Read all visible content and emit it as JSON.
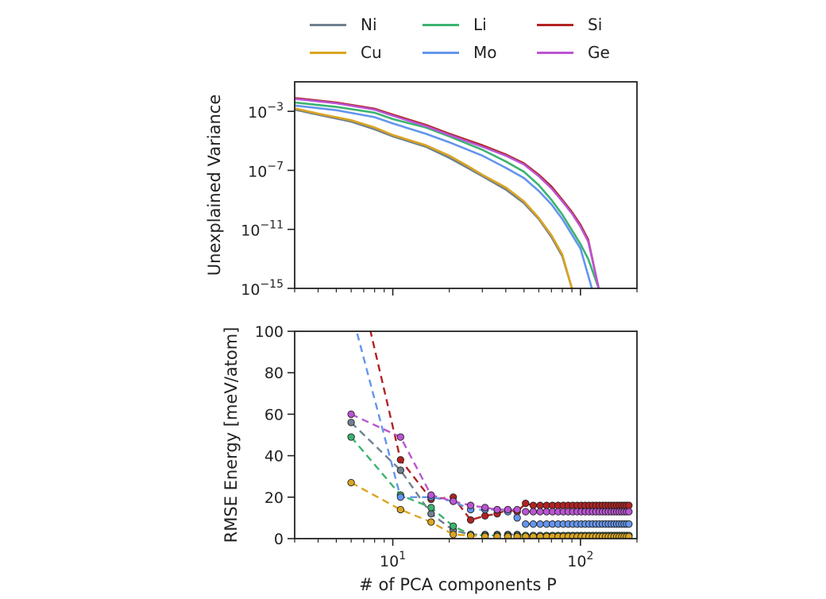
{
  "legend": [
    {
      "name": "Ni",
      "color": "#708090"
    },
    {
      "name": "Li",
      "color": "#3cb371"
    },
    {
      "name": "Si",
      "color": "#b22222"
    },
    {
      "name": "Cu",
      "color": "#daa520"
    },
    {
      "name": "Mo",
      "color": "#6495ed"
    },
    {
      "name": "Ge",
      "color": "#ba55d3"
    }
  ],
  "chart_data": [
    {
      "type": "line",
      "title": "",
      "xlabel": "",
      "ylabel": "Unexplained Variance",
      "xscale": "log",
      "yscale": "log",
      "xlim": [
        3,
        200
      ],
      "ylim": [
        1e-15,
        0.1
      ],
      "yticks": [
        {
          "value": 0.001,
          "base": "10",
          "exp": "−3"
        },
        {
          "value": 1e-07,
          "base": "10",
          "exp": "−7"
        },
        {
          "value": 1e-11,
          "base": "10",
          "exp": "−11"
        },
        {
          "value": 1e-15,
          "base": "10",
          "exp": "−15"
        }
      ],
      "xticks": [
        {
          "value": 10,
          "base": "10",
          "exp": "1"
        },
        {
          "value": 100,
          "base": "10",
          "exp": "2"
        }
      ],
      "series": [
        {
          "name": "Ni",
          "x": [
            3,
            4,
            6,
            8,
            10,
            15,
            20,
            25,
            30,
            40,
            50,
            60,
            70,
            80,
            90
          ],
          "y": [
            0.0013,
            0.0006,
            0.0002,
            6e-05,
            2e-05,
            4e-06,
            7e-07,
            1.5e-07,
            4e-08,
            5e-09,
            6e-10,
            5e-11,
            3e-12,
            1.5e-13,
            1e-15
          ]
        },
        {
          "name": "Li",
          "x": [
            3,
            5,
            8,
            10,
            15,
            20,
            30,
            40,
            50,
            60,
            70,
            80,
            100,
            110,
            125
          ],
          "y": [
            0.004,
            0.002,
            0.0008,
            0.0003,
            8e-05,
            2e-05,
            2.5e-06,
            4e-07,
            8e-08,
            1e-08,
            1e-09,
            1e-10,
            1e-12,
            1e-13,
            1e-15
          ]
        },
        {
          "name": "Si",
          "x": [
            3,
            5,
            8,
            10,
            15,
            20,
            30,
            40,
            50,
            60,
            70,
            80,
            90,
            100,
            110,
            125
          ],
          "y": [
            0.008,
            0.004,
            0.0015,
            0.0006,
            0.00012,
            3e-05,
            5e-06,
            1.2e-06,
            3e-07,
            5e-08,
            8e-09,
            1e-09,
            1.5e-10,
            2e-11,
            2e-12,
            1e-15
          ]
        },
        {
          "name": "Cu",
          "x": [
            3,
            4,
            6,
            8,
            10,
            15,
            20,
            25,
            30,
            40,
            50,
            60,
            70,
            80,
            90
          ],
          "y": [
            0.0016,
            0.0007,
            0.00025,
            8e-05,
            2.5e-05,
            5e-06,
            1e-06,
            2e-07,
            5e-08,
            7e-09,
            8e-10,
            6e-11,
            4e-12,
            2e-13,
            1e-15
          ]
        },
        {
          "name": "Mo",
          "x": [
            3,
            5,
            8,
            10,
            15,
            20,
            30,
            40,
            50,
            60,
            70,
            80,
            100,
            115
          ],
          "y": [
            0.0025,
            0.0012,
            0.0004,
            0.00015,
            3e-05,
            8e-06,
            1e-06,
            1.5e-07,
            3e-08,
            4e-09,
            5e-10,
            5e-11,
            5e-13,
            1e-15
          ]
        },
        {
          "name": "Ge",
          "x": [
            3,
            5,
            8,
            10,
            15,
            20,
            30,
            40,
            50,
            60,
            70,
            80,
            90,
            100,
            110,
            125
          ],
          "y": [
            0.007,
            0.0035,
            0.0013,
            0.0005,
            0.0001,
            2.5e-05,
            4e-06,
            1e-06,
            2.5e-07,
            4e-08,
            6e-09,
            8e-10,
            1.2e-10,
            1.5e-11,
            1.5e-12,
            1e-15
          ]
        }
      ]
    },
    {
      "type": "line",
      "title": "",
      "xlabel": "# of PCA components P",
      "ylabel": "RMSE Energy [meV/atom]",
      "xscale": "log",
      "yscale": "linear",
      "xlim": [
        3,
        200
      ],
      "ylim": [
        0,
        100
      ],
      "yticks": [
        {
          "value": 0,
          "label": "0"
        },
        {
          "value": 20,
          "label": "20"
        },
        {
          "value": 40,
          "label": "40"
        },
        {
          "value": 60,
          "label": "60"
        },
        {
          "value": 80,
          "label": "80"
        },
        {
          "value": 100,
          "label": "100"
        }
      ],
      "xticks": [
        {
          "value": 10,
          "base": "10",
          "exp": "1"
        },
        {
          "value": 100,
          "base": "10",
          "exp": "2"
        }
      ],
      "series": [
        {
          "name": "Ni",
          "x": [
            6,
            11,
            16,
            21,
            26,
            31,
            36,
            41,
            46,
            51,
            56,
            61,
            66,
            71,
            76,
            81,
            86,
            91,
            96,
            101,
            106,
            111,
            116,
            121,
            126,
            131,
            136,
            141,
            146,
            151,
            156,
            161,
            166,
            171,
            176,
            181
          ],
          "y": [
            56,
            33,
            12,
            4,
            2,
            2,
            2,
            2,
            2,
            1.5,
            1.5,
            1.5,
            1.5,
            1.5,
            1.5,
            1.5,
            1.5,
            1.5,
            1.5,
            1.5,
            1.5,
            1.5,
            1.5,
            1.5,
            1.5,
            1.5,
            1.5,
            1.5,
            1.5,
            1.5,
            1.5,
            1.5,
            1.5,
            1.5,
            1.5,
            1.5
          ]
        },
        {
          "name": "Li",
          "x": [
            6,
            11,
            16,
            21,
            26,
            31,
            36,
            41,
            46,
            51,
            56,
            61,
            66,
            71,
            76,
            81,
            86,
            91,
            96,
            101,
            106,
            111,
            116,
            121,
            126,
            131,
            136,
            141,
            146,
            151,
            156,
            161,
            166,
            171,
            176,
            181
          ],
          "y": [
            49,
            21,
            15,
            6,
            2,
            1.5,
            1.5,
            1.5,
            1.5,
            1.5,
            1.5,
            1.5,
            1.5,
            1.5,
            1.5,
            1.5,
            1.5,
            1.5,
            1.5,
            1.5,
            1.5,
            1.5,
            1.5,
            1.5,
            1.5,
            1.5,
            1.5,
            1.5,
            1.5,
            1.5,
            1.5,
            1.5,
            1.5,
            1.5,
            1.5,
            1.5
          ]
        },
        {
          "name": "Si",
          "x": [
            6,
            11,
            16,
            21,
            26,
            31,
            36,
            41,
            46,
            51,
            56,
            61,
            66,
            71,
            76,
            81,
            86,
            91,
            96,
            101,
            106,
            111,
            116,
            121,
            126,
            131,
            136,
            141,
            146,
            151,
            156,
            161,
            166,
            171,
            176,
            181
          ],
          "y": [
            140,
            38,
            19,
            20,
            9,
            11,
            12,
            14,
            13,
            17,
            16,
            16,
            16,
            16,
            16,
            16,
            16,
            16,
            16,
            16,
            16,
            16,
            16,
            16,
            16,
            16,
            16,
            16,
            16,
            16,
            16,
            16,
            16,
            16,
            16,
            16
          ]
        },
        {
          "name": "Cu",
          "x": [
            6,
            11,
            16,
            21,
            26,
            31,
            36,
            41,
            46,
            51,
            56,
            61,
            66,
            71,
            76,
            81,
            86,
            91,
            96,
            101,
            106,
            111,
            116,
            121,
            126,
            131,
            136,
            141,
            146,
            151,
            156,
            161,
            166,
            171,
            176,
            181
          ],
          "y": [
            27,
            14,
            8,
            2,
            1.5,
            1,
            1,
            1,
            1,
            1,
            1,
            1,
            1,
            1,
            1,
            1,
            1,
            1,
            1,
            1,
            1,
            1,
            1,
            1,
            1,
            1,
            1,
            1,
            1,
            1,
            1,
            1,
            1,
            1,
            1,
            1
          ]
        },
        {
          "name": "Mo",
          "x": [
            6,
            11,
            16,
            21,
            26,
            31,
            36,
            41,
            46,
            51,
            56,
            61,
            66,
            71,
            76,
            81,
            86,
            91,
            96,
            101,
            106,
            111,
            116,
            121,
            126,
            131,
            136,
            141,
            146,
            151,
            156,
            161,
            166,
            171,
            176,
            181
          ],
          "y": [
            110,
            20,
            20,
            18,
            14,
            14,
            14,
            13,
            10,
            7,
            7,
            7,
            7,
            7,
            7,
            7,
            7,
            7,
            7,
            7,
            7,
            7,
            7,
            7,
            7,
            7,
            7,
            7,
            7,
            7,
            7,
            7,
            7,
            7,
            7,
            7
          ]
        },
        {
          "name": "Ge",
          "x": [
            6,
            11,
            16,
            21,
            26,
            31,
            36,
            41,
            46,
            51,
            56,
            61,
            66,
            71,
            76,
            81,
            86,
            91,
            96,
            101,
            106,
            111,
            116,
            121,
            126,
            131,
            136,
            141,
            146,
            151,
            156,
            161,
            166,
            171,
            176,
            181
          ],
          "y": [
            60,
            49,
            21,
            18,
            16,
            15,
            14,
            14,
            14,
            13,
            13,
            13,
            13,
            13,
            13,
            13,
            13,
            13,
            13,
            13,
            13,
            13,
            13,
            13,
            13,
            13,
            13,
            13,
            13,
            13,
            13,
            13,
            13,
            13,
            13,
            13
          ]
        }
      ]
    }
  ]
}
